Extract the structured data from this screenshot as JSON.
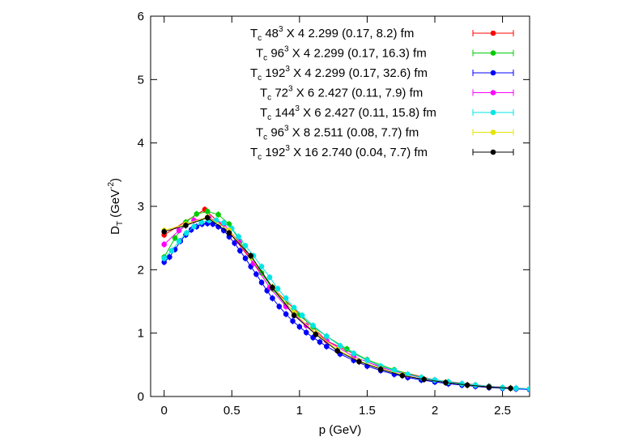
{
  "chart_data": {
    "type": "line",
    "xlabel": {
      "main": "p (GeV)"
    },
    "ylabel": {
      "main": "D",
      "sub": "T",
      "unit_open": " (GeV",
      "unit_sup": "-2",
      "unit_close": ")"
    },
    "xlim": [
      -0.1,
      2.7
    ],
    "ylim": [
      0,
      6
    ],
    "x_ticks": [
      "0",
      "0.5",
      "1",
      "1.5",
      "2",
      "2.5"
    ],
    "x_tick_values": [
      0,
      0.5,
      1,
      1.5,
      2,
      2.5
    ],
    "y_ticks": [
      "0",
      "1",
      "2",
      "3",
      "4",
      "5",
      "6"
    ],
    "y_tick_values": [
      0,
      1,
      2,
      3,
      4,
      5,
      6
    ],
    "legend_position": "top-right",
    "grid": false,
    "series": [
      {
        "name_tc": "T",
        "name_sub": "c",
        "lattice": "48",
        "dims": " X 4",
        "beta": "2.299",
        "range": "(0.17, 8.2) fm",
        "color": "#ff0000",
        "x": [
          0,
          0.3,
          0.48,
          0.8,
          1.2,
          1.6,
          2.0,
          2.4,
          2.7
        ],
        "y": [
          2.55,
          2.95,
          2.6,
          1.72,
          0.88,
          0.47,
          0.26,
          0.16,
          0.12
        ]
      },
      {
        "name_tc": "T",
        "name_sub": "c",
        "lattice": "96",
        "dims": " X 4",
        "beta": "2.299",
        "range": "(0.17, 16.3) fm",
        "color": "#00cc00",
        "x": [
          0,
          0.08,
          0.16,
          0.24,
          0.32,
          0.4,
          0.48,
          0.56,
          0.64,
          0.72,
          0.8,
          0.9,
          1.0,
          1.1,
          1.2,
          1.35,
          1.5,
          1.7,
          1.9,
          2.1,
          2.3,
          2.5,
          2.7
        ],
        "y": [
          2.2,
          2.5,
          2.75,
          2.88,
          2.92,
          2.87,
          2.72,
          2.45,
          2.2,
          1.95,
          1.7,
          1.45,
          1.28,
          1.1,
          0.95,
          0.75,
          0.58,
          0.42,
          0.3,
          0.23,
          0.18,
          0.14,
          0.11
        ]
      },
      {
        "name_tc": "T",
        "name_sub": "c",
        "lattice": "192",
        "dims": " X 4",
        "beta": "2.299",
        "range": "(0.17, 32.6) fm",
        "color": "#0000ff",
        "x": [
          0,
          0.04,
          0.08,
          0.12,
          0.16,
          0.2,
          0.24,
          0.28,
          0.32,
          0.36,
          0.4,
          0.44,
          0.48,
          0.52,
          0.56,
          0.6,
          0.64,
          0.68,
          0.72,
          0.76,
          0.8,
          0.85,
          0.9,
          0.95,
          1.0,
          1.05,
          1.1,
          1.15,
          1.2,
          1.3,
          1.4,
          1.5,
          1.6,
          1.7,
          1.8,
          1.9,
          2.0,
          2.1,
          2.2,
          2.3,
          2.4,
          2.5,
          2.6,
          2.7
        ],
        "y": [
          2.12,
          2.2,
          2.32,
          2.45,
          2.55,
          2.63,
          2.68,
          2.72,
          2.73,
          2.72,
          2.68,
          2.62,
          2.52,
          2.42,
          2.3,
          2.18,
          2.05,
          1.93,
          1.8,
          1.67,
          1.55,
          1.42,
          1.3,
          1.19,
          1.1,
          1.01,
          0.93,
          0.86,
          0.79,
          0.67,
          0.57,
          0.48,
          0.41,
          0.35,
          0.3,
          0.26,
          0.23,
          0.2,
          0.18,
          0.16,
          0.14,
          0.13,
          0.12,
          0.11
        ]
      },
      {
        "name_tc": "T",
        "name_sub": "c",
        "lattice": "72",
        "dims": " X 6",
        "beta": "2.427",
        "range": "(0.11, 7.9) fm",
        "color": "#ff00ff",
        "x": [
          0,
          0.11,
          0.22,
          0.33,
          0.44,
          0.55,
          0.66,
          0.78,
          0.9,
          1.05,
          1.2,
          1.4,
          1.6,
          1.8,
          2.0,
          2.2,
          2.4,
          2.6
        ],
        "y": [
          2.4,
          2.62,
          2.78,
          2.82,
          2.72,
          2.45,
          2.1,
          1.72,
          1.42,
          1.12,
          0.88,
          0.63,
          0.46,
          0.34,
          0.26,
          0.2,
          0.16,
          0.13
        ]
      },
      {
        "name_tc": "T",
        "name_sub": "c",
        "lattice": "144",
        "dims": " X 6",
        "beta": "2.427",
        "range": "(0.11, 15.8) fm",
        "color": "#00e5e5",
        "x": [
          0,
          0.055,
          0.11,
          0.165,
          0.22,
          0.275,
          0.33,
          0.385,
          0.44,
          0.5,
          0.55,
          0.6,
          0.66,
          0.72,
          0.78,
          0.84,
          0.9,
          0.96,
          1.02,
          1.1,
          1.2,
          1.3,
          1.4,
          1.5,
          1.6,
          1.7,
          1.8,
          1.9,
          2.0,
          2.1,
          2.2,
          2.3,
          2.4,
          2.5,
          2.6,
          2.7
        ],
        "y": [
          2.18,
          2.3,
          2.45,
          2.58,
          2.68,
          2.75,
          2.78,
          2.78,
          2.74,
          2.65,
          2.52,
          2.38,
          2.22,
          2.05,
          1.88,
          1.7,
          1.55,
          1.4,
          1.28,
          1.12,
          0.95,
          0.8,
          0.68,
          0.57,
          0.48,
          0.41,
          0.35,
          0.3,
          0.26,
          0.23,
          0.2,
          0.18,
          0.16,
          0.14,
          0.13,
          0.12
        ]
      },
      {
        "name_tc": "T",
        "name_sub": "c",
        "lattice": "96",
        "dims": " X 8",
        "beta": "2.511",
        "range": "(0.08, 7.7) fm",
        "color": "#e5e500",
        "x": [
          0,
          0.16,
          0.32,
          0.48,
          0.64,
          0.8,
          0.96,
          1.12,
          1.28,
          1.44,
          1.6,
          1.76,
          1.92,
          2.08,
          2.24,
          2.4,
          2.56
        ],
        "y": [
          2.62,
          2.72,
          2.83,
          2.62,
          2.2,
          1.73,
          1.32,
          1.0,
          0.74,
          0.56,
          0.44,
          0.34,
          0.27,
          0.22,
          0.18,
          0.15,
          0.13
        ]
      },
      {
        "name_tc": "T",
        "name_sub": "c",
        "lattice": "192",
        "dims": " X 16",
        "beta": "2.740",
        "range": "(0.04, 7.7) fm",
        "color": "#000000",
        "x": [
          0,
          0.16,
          0.32,
          0.48,
          0.64,
          0.8,
          0.96,
          1.12,
          1.28,
          1.44,
          1.6,
          1.76,
          1.92,
          2.08,
          2.24,
          2.4,
          2.56
        ],
        "y": [
          2.6,
          2.7,
          2.82,
          2.58,
          2.22,
          1.72,
          1.28,
          0.98,
          0.72,
          0.55,
          0.43,
          0.33,
          0.27,
          0.22,
          0.18,
          0.15,
          0.13
        ]
      }
    ]
  }
}
